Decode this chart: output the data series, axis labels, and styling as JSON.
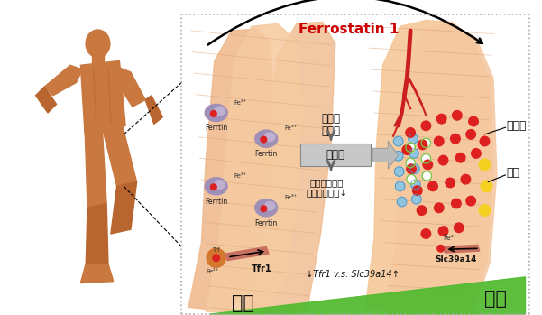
{
  "fig_width": 6.01,
  "fig_height": 3.49,
  "dpi": 100,
  "bg_color": "#ffffff",
  "ferrostatin_text": "Ferrostatin 1",
  "ferrostatin_color": "#cc0000",
  "young_text": "年轻",
  "old_text": "衰老",
  "green_color": "#55bb33",
  "tfr1_vs_text": "↓Tfr1 v.s. Slc39a14↑",
  "box1_text1": "铁吸收",
  "box1_text2": "和萁积",
  "box2_text": "铁死亡",
  "box3_text1": "肌卫星细胞活",
  "box3_text2": "性和再生潜能↓",
  "right_label1": "铁离子",
  "right_label2": "脂滴",
  "slc_text": "Slc39a14",
  "tfr1_label": "Tfr1",
  "ferrtin_text": "Ferrtin",
  "muscle_color1": "#f5cba0",
  "muscle_color2": "#f0c090",
  "muscle_stripe": "#e0a070",
  "muscle_old_color": "#f5c8a0",
  "box_fill": "#c8c8c8",
  "box_edge": "#888888",
  "arrow_fill": "#cccccc",
  "red_dot": "#dd2020",
  "blue_dot": "#90c4e0",
  "yellow_dot": "#f5d020",
  "green_dot_edge": "#80c040",
  "orange_dot": "#d47830",
  "blood_color": "#cc2020",
  "tfr1_bar_color": "#c87060",
  "slc_bar_color": "#c87060"
}
